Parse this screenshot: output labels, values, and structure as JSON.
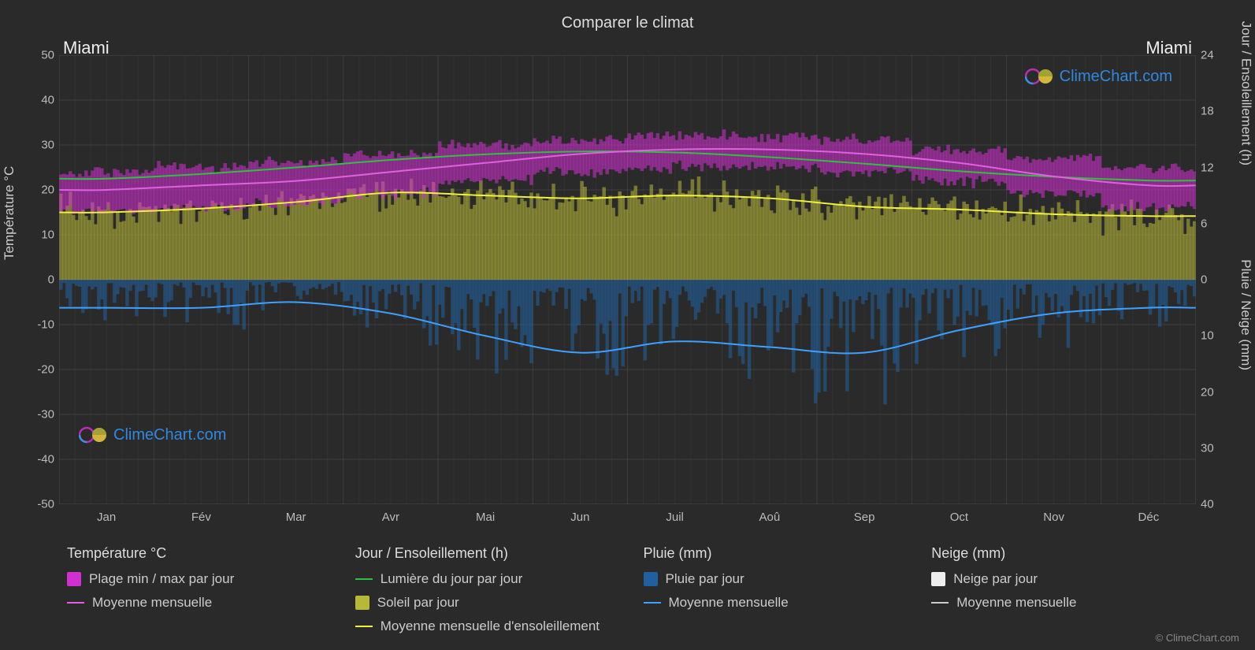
{
  "title": "Comparer le climat",
  "city_left": "Miami",
  "city_right": "Miami",
  "axis_left_label": "Température °C",
  "axis_right_top_label": "Jour / Ensoleillement (h)",
  "axis_right_bottom_label": "Pluie / Neige (mm)",
  "copyright": "© ClimeChart.com",
  "watermark_text": "ClimeChart.com",
  "chart": {
    "background_color": "#2a2a2a",
    "grid_color": "#555555",
    "grid_width": 1,
    "left_axis": {
      "min": -50,
      "max": 50,
      "ticks": [
        -50,
        -40,
        -30,
        -20,
        -10,
        0,
        10,
        20,
        30,
        40,
        50
      ]
    },
    "right_top_axis": {
      "min": 0,
      "max": 24,
      "ticks": [
        0,
        6,
        12,
        18,
        24
      ]
    },
    "right_bottom_axis": {
      "min": 0,
      "max": 40,
      "ticks": [
        0,
        10,
        20,
        30,
        40
      ]
    },
    "months": [
      "Jan",
      "Fév",
      "Mar",
      "Avr",
      "Mai",
      "Jun",
      "Juil",
      "Aoû",
      "Sep",
      "Oct",
      "Nov",
      "Déc"
    ],
    "days_per_month": 30,
    "series": {
      "temp_range": {
        "color": "#d030d0",
        "monthly_min": [
          15,
          16,
          17,
          19,
          22,
          24,
          25,
          25,
          24,
          22,
          19,
          16
        ],
        "monthly_max": [
          24,
          25,
          26,
          28,
          30,
          31,
          32,
          32,
          31,
          29,
          27,
          25
        ]
      },
      "temp_mean_line": {
        "color": "#e060e0",
        "width": 2,
        "values": [
          20,
          21,
          22,
          24,
          26,
          28,
          29,
          29,
          28,
          26,
          23,
          21
        ]
      },
      "daylight_line": {
        "color": "#30c040",
        "width": 2,
        "values_h": [
          10.8,
          11.3,
          12.0,
          12.8,
          13.4,
          13.7,
          13.6,
          13.1,
          12.4,
          11.6,
          11.0,
          10.6
        ]
      },
      "sunshine_bars": {
        "color": "#b8b838",
        "monthly_mean_h": [
          7.2,
          7.6,
          8.3,
          9.3,
          9.0,
          8.7,
          9.0,
          8.7,
          7.8,
          7.5,
          7.0,
          6.8
        ]
      },
      "sunshine_mean_line": {
        "color": "#f0f040",
        "width": 2,
        "values_h": [
          7.2,
          7.6,
          8.3,
          9.3,
          9.0,
          8.7,
          9.0,
          8.7,
          7.8,
          7.5,
          7.0,
          6.8
        ]
      },
      "rain_bars": {
        "color": "#2060a0",
        "monthly_mean_mm": [
          5,
          5,
          4,
          6,
          10,
          13,
          11,
          12,
          13,
          9,
          6,
          5
        ]
      },
      "rain_mean_line": {
        "color": "#40a0ff",
        "width": 2,
        "values_mm": [
          5,
          5,
          4,
          6,
          10,
          13,
          11,
          12,
          13,
          9,
          6,
          5
        ]
      },
      "snow": {
        "color": "#eeeeee",
        "monthly_mean_mm": [
          0,
          0,
          0,
          0,
          0,
          0,
          0,
          0,
          0,
          0,
          0,
          0
        ]
      }
    }
  },
  "legend": {
    "cols": [
      {
        "header": "Température °C",
        "items": [
          {
            "type": "swatch",
            "color": "#d030d0",
            "label": "Plage min / max par jour"
          },
          {
            "type": "line",
            "color": "#e060e0",
            "label": "Moyenne mensuelle"
          }
        ]
      },
      {
        "header": "Jour / Ensoleillement (h)",
        "items": [
          {
            "type": "line",
            "color": "#30c040",
            "label": "Lumière du jour par jour"
          },
          {
            "type": "swatch",
            "color": "#b8b838",
            "label": "Soleil par jour"
          },
          {
            "type": "line",
            "color": "#f0f040",
            "label": "Moyenne mensuelle d'ensoleillement"
          }
        ]
      },
      {
        "header": "Pluie (mm)",
        "items": [
          {
            "type": "swatch",
            "color": "#2060a0",
            "label": "Pluie par jour"
          },
          {
            "type": "line",
            "color": "#40a0ff",
            "label": "Moyenne mensuelle"
          }
        ]
      },
      {
        "header": "Neige (mm)",
        "items": [
          {
            "type": "swatch",
            "color": "#eeeeee",
            "label": "Neige par jour"
          },
          {
            "type": "line",
            "color": "#cccccc",
            "label": "Moyenne mensuelle"
          }
        ]
      }
    ]
  }
}
